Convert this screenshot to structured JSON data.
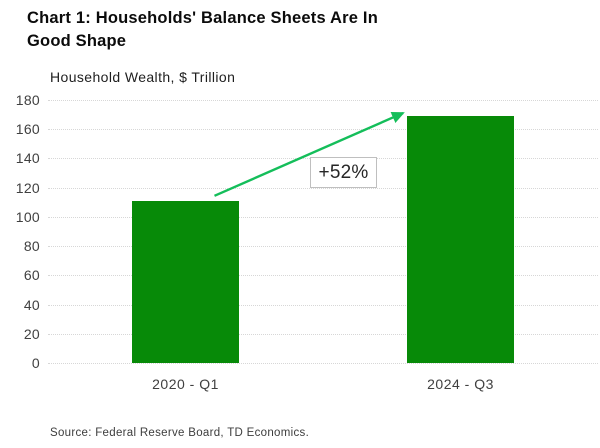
{
  "header": {
    "title_line1": "Chart 1: Households' Balance Sheets Are In",
    "title_line2": "Good Shape"
  },
  "chart_data": {
    "type": "bar",
    "title": "Chart 1: Households' Balance Sheets Are In Good Shape",
    "subtitle": "Household Wealth, $ Trillion",
    "categories": [
      "2020 - Q1",
      "2024 - Q3"
    ],
    "values": [
      111,
      169
    ],
    "ylim": [
      0,
      180
    ],
    "yticks": [
      0,
      20,
      40,
      60,
      80,
      100,
      120,
      140,
      160,
      180
    ],
    "grid": true,
    "legend": "none",
    "bar_color": "#078a08",
    "arrow_color": "#14be5a",
    "annotation": {
      "text": "+52%"
    }
  },
  "source_note": "Source: Federal Reserve Board, TD Economics."
}
